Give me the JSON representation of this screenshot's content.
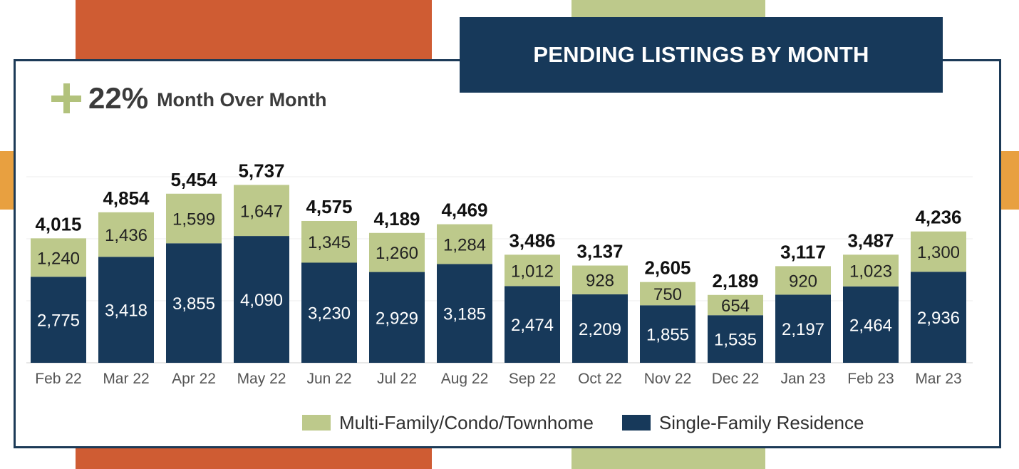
{
  "title": "PENDING LISTINGS BY MONTH",
  "headline": {
    "percent": "22%",
    "label": "Month Over Month",
    "icon": "plus-icon"
  },
  "colors": {
    "single_family": "#17395a",
    "multi_family": "#bdc98b",
    "frame": "#1c3a57",
    "accent_orange": "#cf5c33",
    "accent_green": "#bdc98b",
    "accent_amber": "#e8a040"
  },
  "chart_data": {
    "type": "bar",
    "stacked": true,
    "categories": [
      "Feb 22",
      "Mar 22",
      "Apr 22",
      "May 22",
      "Jun 22",
      "Jul 22",
      "Aug 22",
      "Sep 22",
      "Oct 22",
      "Nov 22",
      "Dec 22",
      "Jan 23",
      "Feb 23",
      "Mar 23"
    ],
    "series": [
      {
        "name": "Single-Family Residence",
        "values": [
          2775,
          3418,
          3855,
          4090,
          3230,
          2929,
          3185,
          2474,
          2209,
          1855,
          1535,
          2197,
          2464,
          2936
        ]
      },
      {
        "name": "Multi-Family/Condo/Townhome",
        "values": [
          1240,
          1436,
          1599,
          1647,
          1345,
          1260,
          1284,
          1012,
          928,
          750,
          654,
          920,
          1023,
          1300
        ]
      }
    ],
    "value_labels": {
      "single": [
        "2,775",
        "3,418",
        "3,855",
        "4,090",
        "3,230",
        "2,929",
        "3,185",
        "2,474",
        "2,209",
        "1,855",
        "1,535",
        "2,197",
        "2,464",
        "2,936"
      ],
      "multi": [
        "1,240",
        "1,436",
        "1,599",
        "1,647",
        "1,345",
        "1,260",
        "1,284",
        "1,012",
        "928",
        "750",
        "654",
        "920",
        "1,023",
        "1,300"
      ],
      "totals": [
        "4,015",
        "4,854",
        "5,454",
        "5,737",
        "4,575",
        "4,189",
        "4,469",
        "3,486",
        "3,137",
        "2,605",
        "2,189",
        "3,117",
        "3,487",
        "4,236"
      ]
    },
    "ylim": [
      0,
      6000
    ],
    "grid": true,
    "legend": "bottom",
    "legend_order": [
      "Multi-Family/Condo/Townhome",
      "Single-Family Residence"
    ]
  }
}
